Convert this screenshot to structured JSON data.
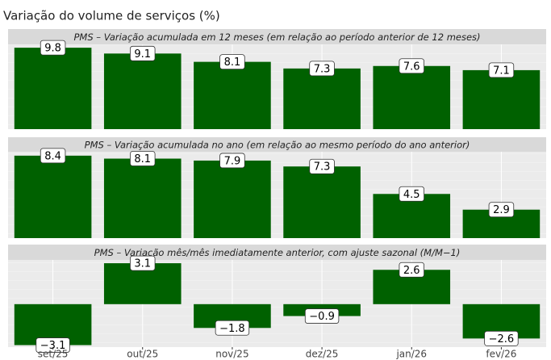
{
  "chart_data": {
    "type": "bar",
    "title": "Variação do volume de serviços (%)",
    "categories": [
      "set/25",
      "out/25",
      "nov/25",
      "dez/25",
      "jan/26",
      "fev/26"
    ],
    "color": "#006100",
    "panels": [
      {
        "title": "PMS – Variação acumulada em 12 meses (em relação ao período anterior de 12 meses)",
        "values": [
          9.8,
          9.1,
          8.1,
          7.3,
          7.6,
          7.1
        ],
        "ylim": [
          0,
          10.2
        ]
      },
      {
        "title": "PMS – Variação acumulada no ano (em relação ao mesmo período do ano anterior)",
        "values": [
          8.4,
          8.1,
          7.9,
          7.3,
          4.5,
          2.9
        ],
        "ylim": [
          0,
          8.8
        ]
      },
      {
        "title": "PMS – Variação mês/mês imediatamente anterior, com ajuste sazonal (M/M−1)",
        "values": [
          -3.1,
          3.1,
          -1.8,
          -0.9,
          2.6,
          -2.6
        ],
        "value_labels": [
          "−3.1",
          "3.1",
          "−1.8",
          "−0.9",
          "2.6",
          "−2.6"
        ],
        "ylim": [
          -3.25,
          3.35
        ]
      }
    ]
  }
}
